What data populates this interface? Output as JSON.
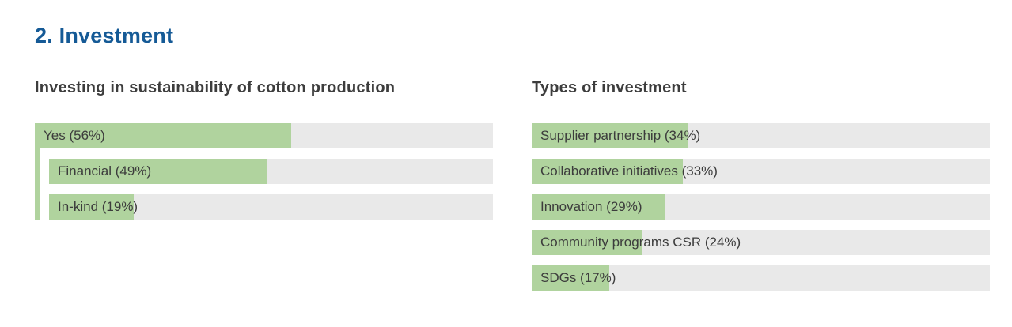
{
  "page": {
    "title": "2. Investment"
  },
  "colors": {
    "title_blue": "#155a96",
    "bar_green": "#b0d39e",
    "track_gray": "#e9e9e9",
    "text_dark": "#3c3c3c",
    "heading_gray": "#3d3d3d"
  },
  "charts": [
    {
      "title": "Investing in sustainability of cotton production",
      "bars": [
        {
          "label": "Yes (56%)"
        },
        {
          "label": "Financial (49%)"
        },
        {
          "label": "In-kind (19%)"
        }
      ]
    },
    {
      "title": "Types of investment",
      "bars": [
        {
          "label": "Supplier partnership (34%)"
        },
        {
          "label": "Collaborative initiatives (33%)"
        },
        {
          "label": "Innovation (29%)"
        },
        {
          "label": "Community programs CSR (24%)"
        },
        {
          "label": "SDGs (17%)"
        }
      ]
    }
  ],
  "chart_data": [
    {
      "type": "bar",
      "orientation": "horizontal",
      "title": "Investing in sustainability of cotton production",
      "categories": [
        "Yes",
        "Financial",
        "In-kind"
      ],
      "values": [
        56,
        49,
        19
      ],
      "unit": "%",
      "xlim": [
        0,
        100
      ],
      "grid": false,
      "legend": false,
      "data_labels": [
        "Yes (56%)",
        "Financial (49%)",
        "In-kind (19%)"
      ],
      "structure_note": "Financial and In-kind are indented child bars of Yes, linked by a green connector stripe on the left edge"
    },
    {
      "type": "bar",
      "orientation": "horizontal",
      "title": "Types of investment",
      "categories": [
        "Supplier partnership",
        "Collaborative initiatives",
        "Innovation",
        "Community programs CSR",
        "SDGs"
      ],
      "values": [
        34,
        33,
        29,
        24,
        17
      ],
      "unit": "%",
      "xlim": [
        0,
        100
      ],
      "grid": false,
      "legend": false,
      "data_labels": [
        "Supplier partnership (34%)",
        "Collaborative initiatives (33%)",
        "Innovation (29%)",
        "Community programs CSR (24%)",
        "SDGs (17%)"
      ]
    }
  ]
}
